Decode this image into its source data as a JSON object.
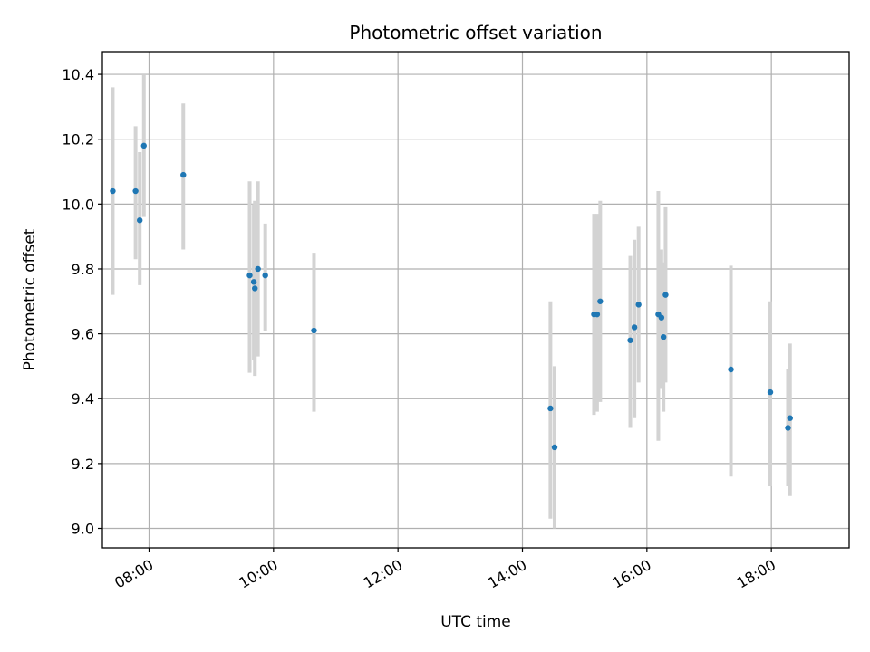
{
  "chart_data": {
    "type": "scatter",
    "title": "Photometric offset variation",
    "xlabel": "UTC time",
    "ylabel": "Photometric offset",
    "x_axis": "time",
    "xlim": [
      "07:15",
      "19:15"
    ],
    "ylim": [
      8.94,
      10.47
    ],
    "x_ticks": [
      "08:00",
      "10:00",
      "12:00",
      "14:00",
      "16:00",
      "18:00"
    ],
    "y_ticks": [
      "9.0",
      "9.2",
      "9.4",
      "9.6",
      "9.8",
      "10.0",
      "10.2",
      "10.4"
    ],
    "grid": true,
    "colors": {
      "point": "#1f77b4",
      "errorbar": "#d3d3d3"
    },
    "points": [
      {
        "x": "07:25",
        "y": 10.04,
        "ylow": 9.72,
        "yhigh": 10.36
      },
      {
        "x": "07:47",
        "y": 10.04,
        "ylow": 9.83,
        "yhigh": 10.24
      },
      {
        "x": "07:51",
        "y": 9.95,
        "ylow": 9.75,
        "yhigh": 10.16
      },
      {
        "x": "07:55",
        "y": 10.18,
        "ylow": 9.96,
        "yhigh": 10.4
      },
      {
        "x": "08:33",
        "y": 10.09,
        "ylow": 9.86,
        "yhigh": 10.31
      },
      {
        "x": "09:37",
        "y": 9.78,
        "ylow": 9.48,
        "yhigh": 10.07
      },
      {
        "x": "09:41",
        "y": 9.76,
        "ylow": 9.52,
        "yhigh": 10.0
      },
      {
        "x": "09:42",
        "y": 9.74,
        "ylow": 9.47,
        "yhigh": 10.01
      },
      {
        "x": "09:45",
        "y": 9.8,
        "ylow": 9.53,
        "yhigh": 10.07
      },
      {
        "x": "09:52",
        "y": 9.78,
        "ylow": 9.61,
        "yhigh": 9.94
      },
      {
        "x": "10:39",
        "y": 9.61,
        "ylow": 9.36,
        "yhigh": 9.85
      },
      {
        "x": "14:27",
        "y": 9.37,
        "ylow": 9.03,
        "yhigh": 9.7
      },
      {
        "x": "14:31",
        "y": 9.25,
        "ylow": 9.0,
        "yhigh": 9.5
      },
      {
        "x": "15:09",
        "y": 9.66,
        "ylow": 9.35,
        "yhigh": 9.97
      },
      {
        "x": "15:12",
        "y": 9.66,
        "ylow": 9.36,
        "yhigh": 9.97
      },
      {
        "x": "15:15",
        "y": 9.7,
        "ylow": 9.39,
        "yhigh": 10.01
      },
      {
        "x": "15:44",
        "y": 9.58,
        "ylow": 9.31,
        "yhigh": 9.84
      },
      {
        "x": "15:48",
        "y": 9.62,
        "ylow": 9.34,
        "yhigh": 9.89
      },
      {
        "x": "15:52",
        "y": 9.69,
        "ylow": 9.45,
        "yhigh": 9.93
      },
      {
        "x": "16:11",
        "y": 9.66,
        "ylow": 9.27,
        "yhigh": 10.04
      },
      {
        "x": "16:14",
        "y": 9.65,
        "ylow": 9.43,
        "yhigh": 9.86
      },
      {
        "x": "16:16",
        "y": 9.59,
        "ylow": 9.36,
        "yhigh": 9.82
      },
      {
        "x": "16:18",
        "y": 9.72,
        "ylow": 9.45,
        "yhigh": 9.99
      },
      {
        "x": "17:21",
        "y": 9.49,
        "ylow": 9.16,
        "yhigh": 9.81
      },
      {
        "x": "17:59",
        "y": 9.42,
        "ylow": 9.13,
        "yhigh": 9.7
      },
      {
        "x": "18:16",
        "y": 9.31,
        "ylow": 9.13,
        "yhigh": 9.49
      },
      {
        "x": "18:18",
        "y": 9.34,
        "ylow": 9.1,
        "yhigh": 9.57
      }
    ]
  }
}
